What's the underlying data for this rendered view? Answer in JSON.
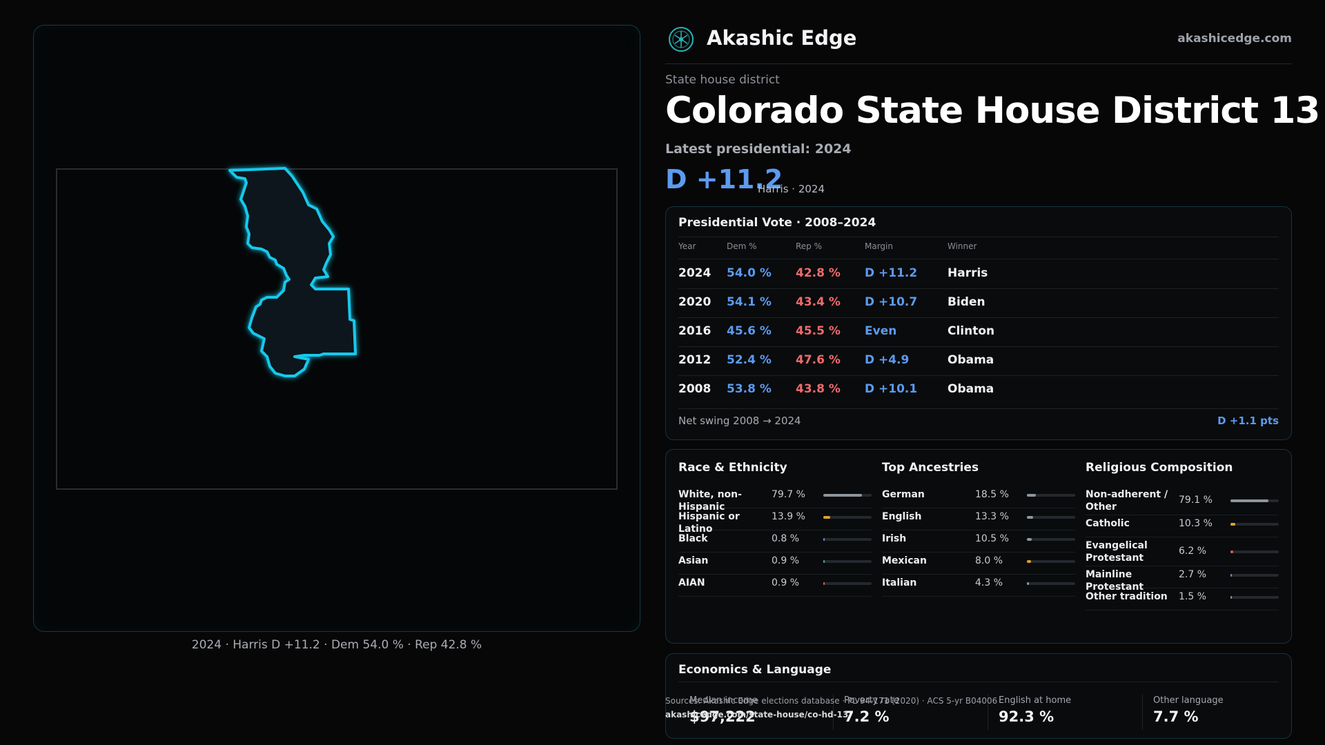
{
  "brand": {
    "name": "Akashic Edge",
    "site": "akashicedge.com"
  },
  "header": {
    "eyebrow": "State house district",
    "title": "Colorado State House District 13",
    "latest": "Latest presidential: 2024",
    "margin": "D +11.2",
    "margin_sub": "Harris · 2024"
  },
  "map": {
    "caption": "2024 · Harris D +11.2 · Dem 54.0 % · Rep 42.8 %"
  },
  "presidential": {
    "title": "Presidential Vote · 2008–2024",
    "headers": [
      "Year",
      "Dem %",
      "Rep %",
      "Margin",
      "Winner"
    ],
    "rows": [
      {
        "year": "2024",
        "dem": "54.0 %",
        "rep": "42.8 %",
        "margin": "D +11.2",
        "winner": "Harris"
      },
      {
        "year": "2020",
        "dem": "54.1 %",
        "rep": "43.4 %",
        "margin": "D +10.7",
        "winner": "Biden"
      },
      {
        "year": "2016",
        "dem": "45.6 %",
        "rep": "45.5 %",
        "margin": "Even",
        "winner": "Clinton"
      },
      {
        "year": "2012",
        "dem": "52.4 %",
        "rep": "47.6 %",
        "margin": "D +4.9",
        "winner": "Obama"
      },
      {
        "year": "2008",
        "dem": "53.8 %",
        "rep": "43.8 %",
        "margin": "D +10.1",
        "winner": "Obama"
      }
    ],
    "swing_label": "Net swing 2008 → 2024",
    "swing_value": "D +1.1 pts"
  },
  "race": {
    "title": "Race & Ethnicity",
    "items": [
      {
        "label": "White, non-Hispanic",
        "value": "79.7 %",
        "pct": 79.7,
        "color": "#8e969e"
      },
      {
        "label": "Hispanic or Latino",
        "value": "13.9 %",
        "pct": 13.9,
        "color": "#e0a030"
      },
      {
        "label": "Black",
        "value": "0.8 %",
        "pct": 0.8,
        "color": "#6a8fd0"
      },
      {
        "label": "Asian",
        "value": "0.9 %",
        "pct": 0.9,
        "color": "#3fb0a0"
      },
      {
        "label": "AIAN",
        "value": "0.9 %",
        "pct": 0.9,
        "color": "#d06a40"
      }
    ]
  },
  "ancestry": {
    "title": "Top Ancestries",
    "items": [
      {
        "label": "German",
        "value": "18.5 %",
        "pct": 18.5,
        "color": "#8e969e"
      },
      {
        "label": "English",
        "value": "13.3 %",
        "pct": 13.3,
        "color": "#8e969e"
      },
      {
        "label": "Irish",
        "value": "10.5 %",
        "pct": 10.5,
        "color": "#8e969e"
      },
      {
        "label": "Mexican",
        "value": "8.0 %",
        "pct": 8.0,
        "color": "#e0a030"
      },
      {
        "label": "Italian",
        "value": "4.3 %",
        "pct": 4.3,
        "color": "#8e969e"
      }
    ]
  },
  "religion": {
    "title": "Religious Composition",
    "items": [
      {
        "label": "Non-adherent / Other",
        "value": "79.1 %",
        "pct": 79.1,
        "color": "#8e969e"
      },
      {
        "label": "Catholic",
        "value": "10.3 %",
        "pct": 10.3,
        "color": "#e0a030"
      },
      {
        "label": "Evangelical Protestant",
        "value": "6.2 %",
        "pct": 6.2,
        "color": "#e05a5a"
      },
      {
        "label": "Mainline Protestant",
        "value": "2.7 %",
        "pct": 2.7,
        "color": "#6a8fd0"
      },
      {
        "label": "Other tradition",
        "value": "1.5 %",
        "pct": 1.5,
        "color": "#8e969e"
      }
    ]
  },
  "economics": {
    "title": "Economics & Language",
    "stats": [
      {
        "label": "Median income",
        "value": "$97,222"
      },
      {
        "label": "Poverty rate",
        "value": "7.2 %"
      },
      {
        "label": "English at home",
        "value": "92.3 %"
      },
      {
        "label": "Other language",
        "value": "7.7 %"
      }
    ]
  },
  "source": {
    "line": "Sources: Akashic Edge elections database · PL 94-171 (2020) · ACS 5-yr B04006",
    "url": "akashicedge.com/state-house/co-hd-13"
  }
}
